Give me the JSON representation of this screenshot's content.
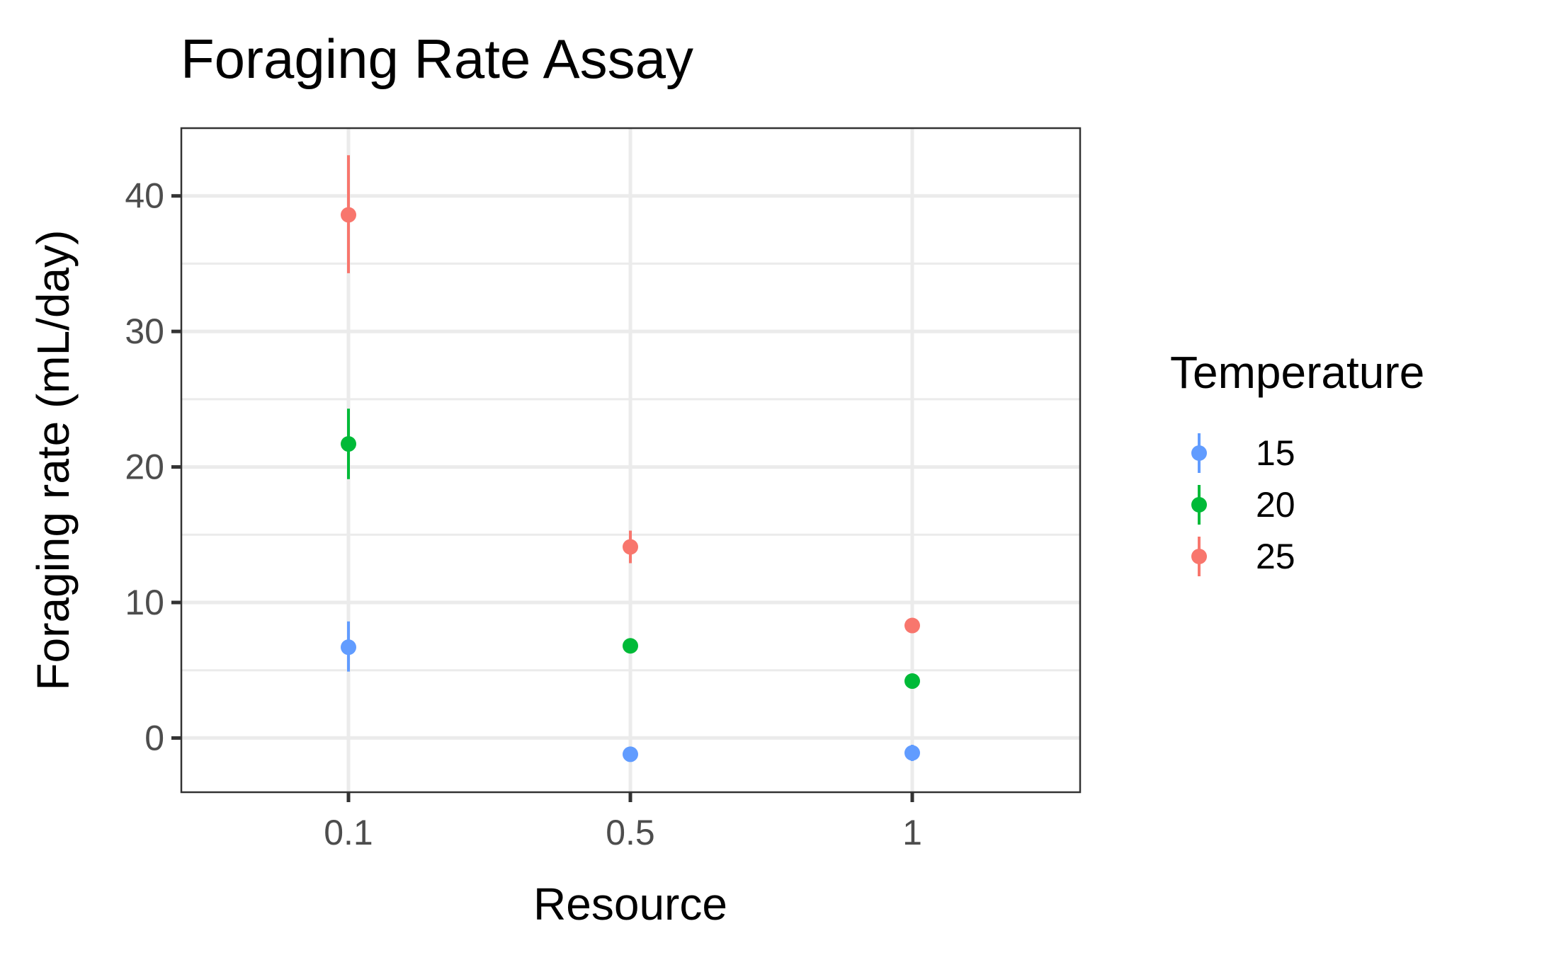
{
  "chart_data": {
    "type": "scatter",
    "title": "Foraging Rate Assay",
    "xlabel": "Resource",
    "ylabel": "Foraging rate (mL/day)",
    "categories": [
      "0.1",
      "0.5",
      "1"
    ],
    "ylim": [
      -4,
      45
    ],
    "yticks": [
      0,
      10,
      20,
      30,
      40
    ],
    "grid": true,
    "legend": {
      "title": "Temperature",
      "position": "right",
      "entries": [
        "15",
        "20",
        "25"
      ]
    },
    "series": [
      {
        "name": "15",
        "color": "#619CFF",
        "values": [
          6.7,
          -1.2,
          -1.1
        ],
        "error_low": [
          4.9,
          -1.6,
          -1.7
        ],
        "error_high": [
          8.6,
          -0.8,
          -0.5
        ]
      },
      {
        "name": "20",
        "color": "#00BA38",
        "values": [
          21.7,
          6.8,
          4.2
        ],
        "error_low": [
          19.1,
          6.3,
          3.8
        ],
        "error_high": [
          24.3,
          7.3,
          4.6
        ]
      },
      {
        "name": "25",
        "color": "#F8766D",
        "values": [
          38.6,
          14.1,
          8.3
        ],
        "error_low": [
          34.3,
          12.9,
          7.9
        ],
        "error_high": [
          43.0,
          15.3,
          8.7
        ]
      }
    ]
  }
}
